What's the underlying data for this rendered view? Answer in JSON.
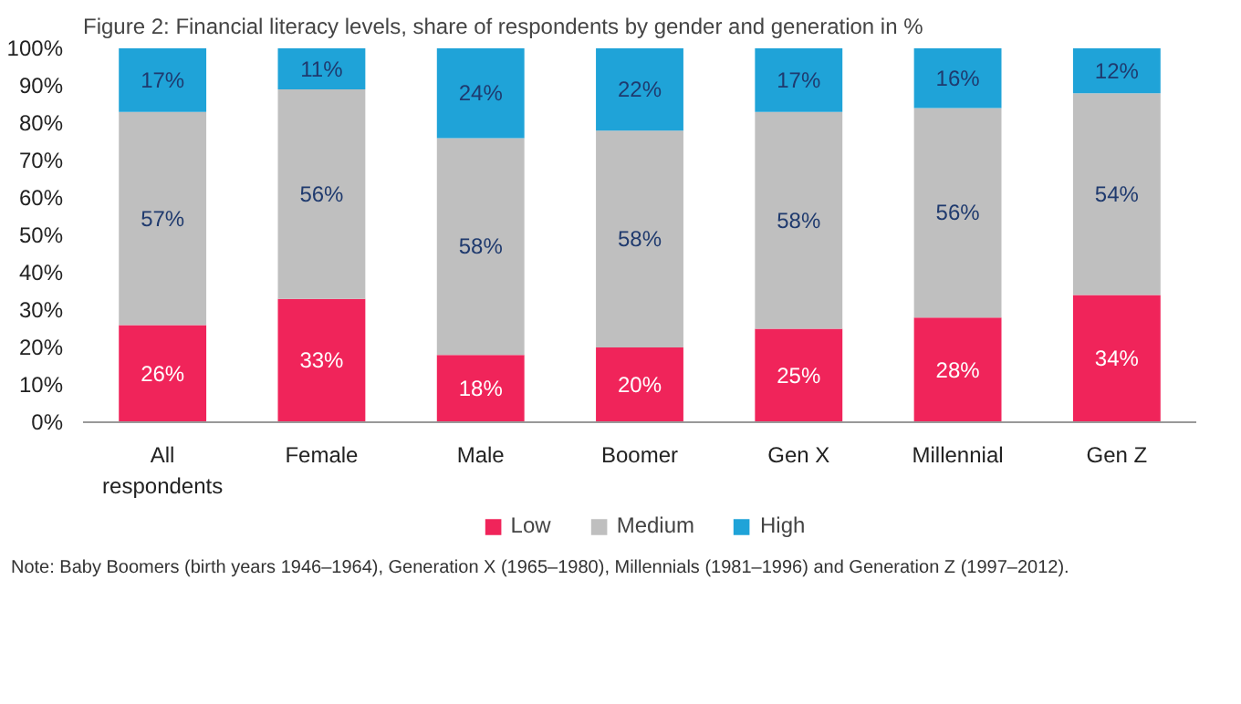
{
  "chart_data": {
    "type": "bar",
    "stacked": true,
    "title": "Figure 2: Financial literacy levels, share of respondents by gender and generation in %",
    "categories": [
      "All respondents",
      "Female",
      "Male",
      "Boomer",
      "Gen X",
      "Millennial",
      "Gen Z"
    ],
    "series": [
      {
        "name": "Low",
        "color": "#f0245a",
        "values": [
          26,
          33,
          18,
          20,
          25,
          28,
          34
        ],
        "value_labels": [
          "26%",
          "33%",
          "18%",
          "20%",
          "25%",
          "28%",
          "34%"
        ]
      },
      {
        "name": "Medium",
        "color": "#bfbfbf",
        "values": [
          57,
          56,
          58,
          58,
          58,
          56,
          54
        ],
        "value_labels": [
          "57%",
          "56%",
          "58%",
          "58%",
          "58%",
          "56%",
          "54%"
        ]
      },
      {
        "name": "High",
        "color": "#1fa3d8",
        "values": [
          17,
          11,
          24,
          22,
          17,
          16,
          12
        ],
        "value_labels": [
          "17%",
          "11%",
          "24%",
          "22%",
          "17%",
          "16%",
          "12%"
        ]
      }
    ],
    "ylim": [
      0,
      100
    ],
    "yticks": [
      {
        "value": 0,
        "label": "0%"
      },
      {
        "value": 10,
        "label": "10%"
      },
      {
        "value": 20,
        "label": "20%"
      },
      {
        "value": 30,
        "label": "30%"
      },
      {
        "value": 40,
        "label": "40%"
      },
      {
        "value": 50,
        "label": "50%"
      },
      {
        "value": 60,
        "label": "60%"
      },
      {
        "value": 70,
        "label": "70%"
      },
      {
        "value": 80,
        "label": "80%"
      },
      {
        "value": 90,
        "label": "90%"
      },
      {
        "value": 100,
        "label": "100%"
      }
    ],
    "legend": "bottom",
    "annotations": [
      "Note: Baby Boomers (birth years 1946–1964), Generation X (1965–1980), Millennials (1981–1996) and Generation Z (1997–2012)."
    ]
  }
}
